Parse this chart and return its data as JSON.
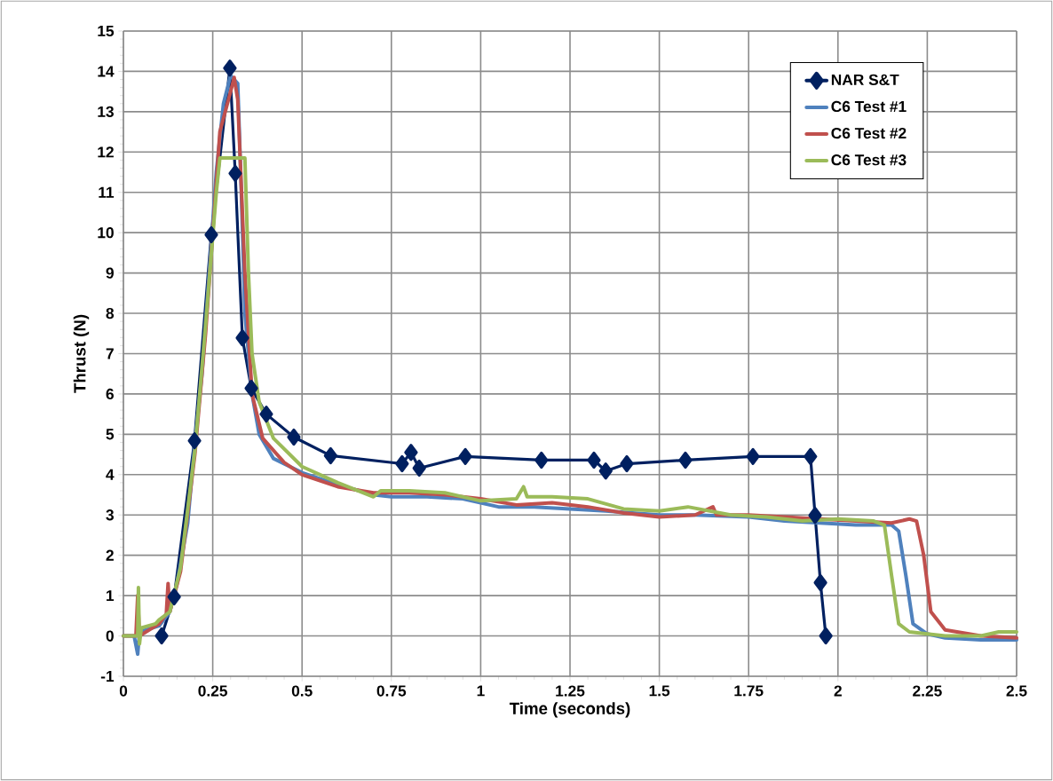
{
  "chart_data": {
    "type": "line",
    "xlabel": "Time (seconds)",
    "ylabel": "Thrust (N)",
    "xlim": [
      0,
      2.5
    ],
    "ylim": [
      -1,
      15
    ],
    "xticks": [
      0,
      0.25,
      0.5,
      0.75,
      1,
      1.25,
      1.5,
      1.75,
      2,
      2.25,
      2.5
    ],
    "yticks": [
      -1,
      0,
      1,
      2,
      3,
      4,
      5,
      6,
      7,
      8,
      9,
      10,
      11,
      12,
      13,
      14,
      15
    ],
    "grid": true,
    "legend": "top right",
    "line_style": "solid",
    "series": [
      {
        "name": "NAR S&T",
        "color": "#002060",
        "marker": "diamond",
        "x": [
          0.107,
          0.142,
          0.199,
          0.246,
          0.298,
          0.313,
          0.333,
          0.358,
          0.4,
          0.477,
          0.58,
          0.78,
          0.805,
          0.828,
          0.957,
          1.17,
          1.317,
          1.35,
          1.409,
          1.573,
          1.762,
          1.923,
          1.936,
          1.951,
          1.966
        ],
        "values": [
          0,
          0.97,
          4.84,
          9.95,
          14.08,
          11.47,
          7.39,
          6.14,
          5.5,
          4.93,
          4.47,
          4.27,
          4.55,
          4.16,
          4.45,
          4.36,
          4.36,
          4.09,
          4.27,
          4.36,
          4.45,
          4.45,
          2.99,
          1.32,
          0
        ]
      },
      {
        "name": "C6 Test #1",
        "color": "#4f81bd",
        "marker": "none",
        "x": [
          0,
          0.03,
          0.04,
          0.045,
          0.1,
          0.13,
          0.15,
          0.18,
          0.2,
          0.22,
          0.24,
          0.26,
          0.28,
          0.3,
          0.32,
          0.33,
          0.34,
          0.36,
          0.38,
          0.42,
          0.5,
          0.6,
          0.7,
          0.75,
          0.85,
          0.95,
          1.05,
          1.15,
          1.25,
          1.35,
          1.5,
          1.6,
          1.75,
          1.85,
          1.95,
          2.05,
          2.1,
          2.15,
          2.17,
          2.19,
          2.21,
          2.25,
          2.3,
          2.4,
          2.5
        ],
        "values": [
          0,
          0,
          -0.45,
          0.1,
          0.25,
          0.6,
          1.3,
          2.8,
          4.8,
          6.5,
          9,
          11.5,
          13.2,
          13.9,
          13.7,
          11,
          8,
          6,
          5,
          4.4,
          4.05,
          3.75,
          3.5,
          3.45,
          3.45,
          3.4,
          3.2,
          3.2,
          3.15,
          3.1,
          3.0,
          3.0,
          2.95,
          2.85,
          2.8,
          2.75,
          2.75,
          2.75,
          2.6,
          1.5,
          0.3,
          0.05,
          -0.05,
          -0.1,
          -0.1
        ]
      },
      {
        "name": "C6 Test #2",
        "color": "#c0504d",
        "marker": "none",
        "x": [
          0,
          0.035,
          0.04,
          0.045,
          0.1,
          0.12,
          0.125,
          0.13,
          0.16,
          0.2,
          0.23,
          0.27,
          0.3,
          0.31,
          0.32,
          0.34,
          0.36,
          0.39,
          0.45,
          0.5,
          0.6,
          0.7,
          0.8,
          0.9,
          1.0,
          1.1,
          1.2,
          1.3,
          1.4,
          1.5,
          1.6,
          1.65,
          1.66,
          1.75,
          1.85,
          1.95,
          2.05,
          2.15,
          2.2,
          2.22,
          2.24,
          2.26,
          2.3,
          2.4,
          2.5
        ],
        "values": [
          0,
          0,
          1.0,
          0,
          0.3,
          0.55,
          1.3,
          0.6,
          1.6,
          4.5,
          7.5,
          12.5,
          13.5,
          13.85,
          13.3,
          9,
          6,
          4.9,
          4.3,
          4.0,
          3.7,
          3.55,
          3.55,
          3.5,
          3.4,
          3.25,
          3.3,
          3.2,
          3.05,
          2.95,
          3.0,
          3.2,
          3.0,
          3.0,
          2.95,
          2.9,
          2.85,
          2.8,
          2.9,
          2.85,
          2.0,
          0.6,
          0.15,
          0,
          -0.05
        ]
      },
      {
        "name": "C6 Test #3",
        "color": "#9bbb59",
        "marker": "none",
        "x": [
          0,
          0.04,
          0.042,
          0.045,
          0.05,
          0.09,
          0.1,
          0.13,
          0.16,
          0.2,
          0.23,
          0.26,
          0.27,
          0.34,
          0.35,
          0.36,
          0.38,
          0.42,
          0.5,
          0.6,
          0.7,
          0.72,
          0.8,
          0.9,
          1.0,
          1.1,
          1.12,
          1.13,
          1.2,
          1.3,
          1.4,
          1.5,
          1.58,
          1.7,
          1.8,
          1.9,
          2.0,
          2.1,
          2.13,
          2.15,
          2.17,
          2.2,
          2.3,
          2.4,
          2.45,
          2.5
        ],
        "values": [
          0,
          0,
          1.2,
          -0.2,
          0.2,
          0.3,
          0.4,
          0.6,
          1.7,
          4.6,
          7.7,
          11.0,
          11.85,
          11.85,
          9,
          7,
          5.8,
          4.9,
          4.2,
          3.8,
          3.45,
          3.6,
          3.6,
          3.55,
          3.35,
          3.4,
          3.7,
          3.45,
          3.45,
          3.4,
          3.15,
          3.1,
          3.2,
          3.0,
          2.95,
          2.85,
          2.9,
          2.85,
          2.75,
          1.5,
          0.3,
          0.1,
          0,
          0,
          0.1,
          0.1
        ]
      }
    ]
  }
}
